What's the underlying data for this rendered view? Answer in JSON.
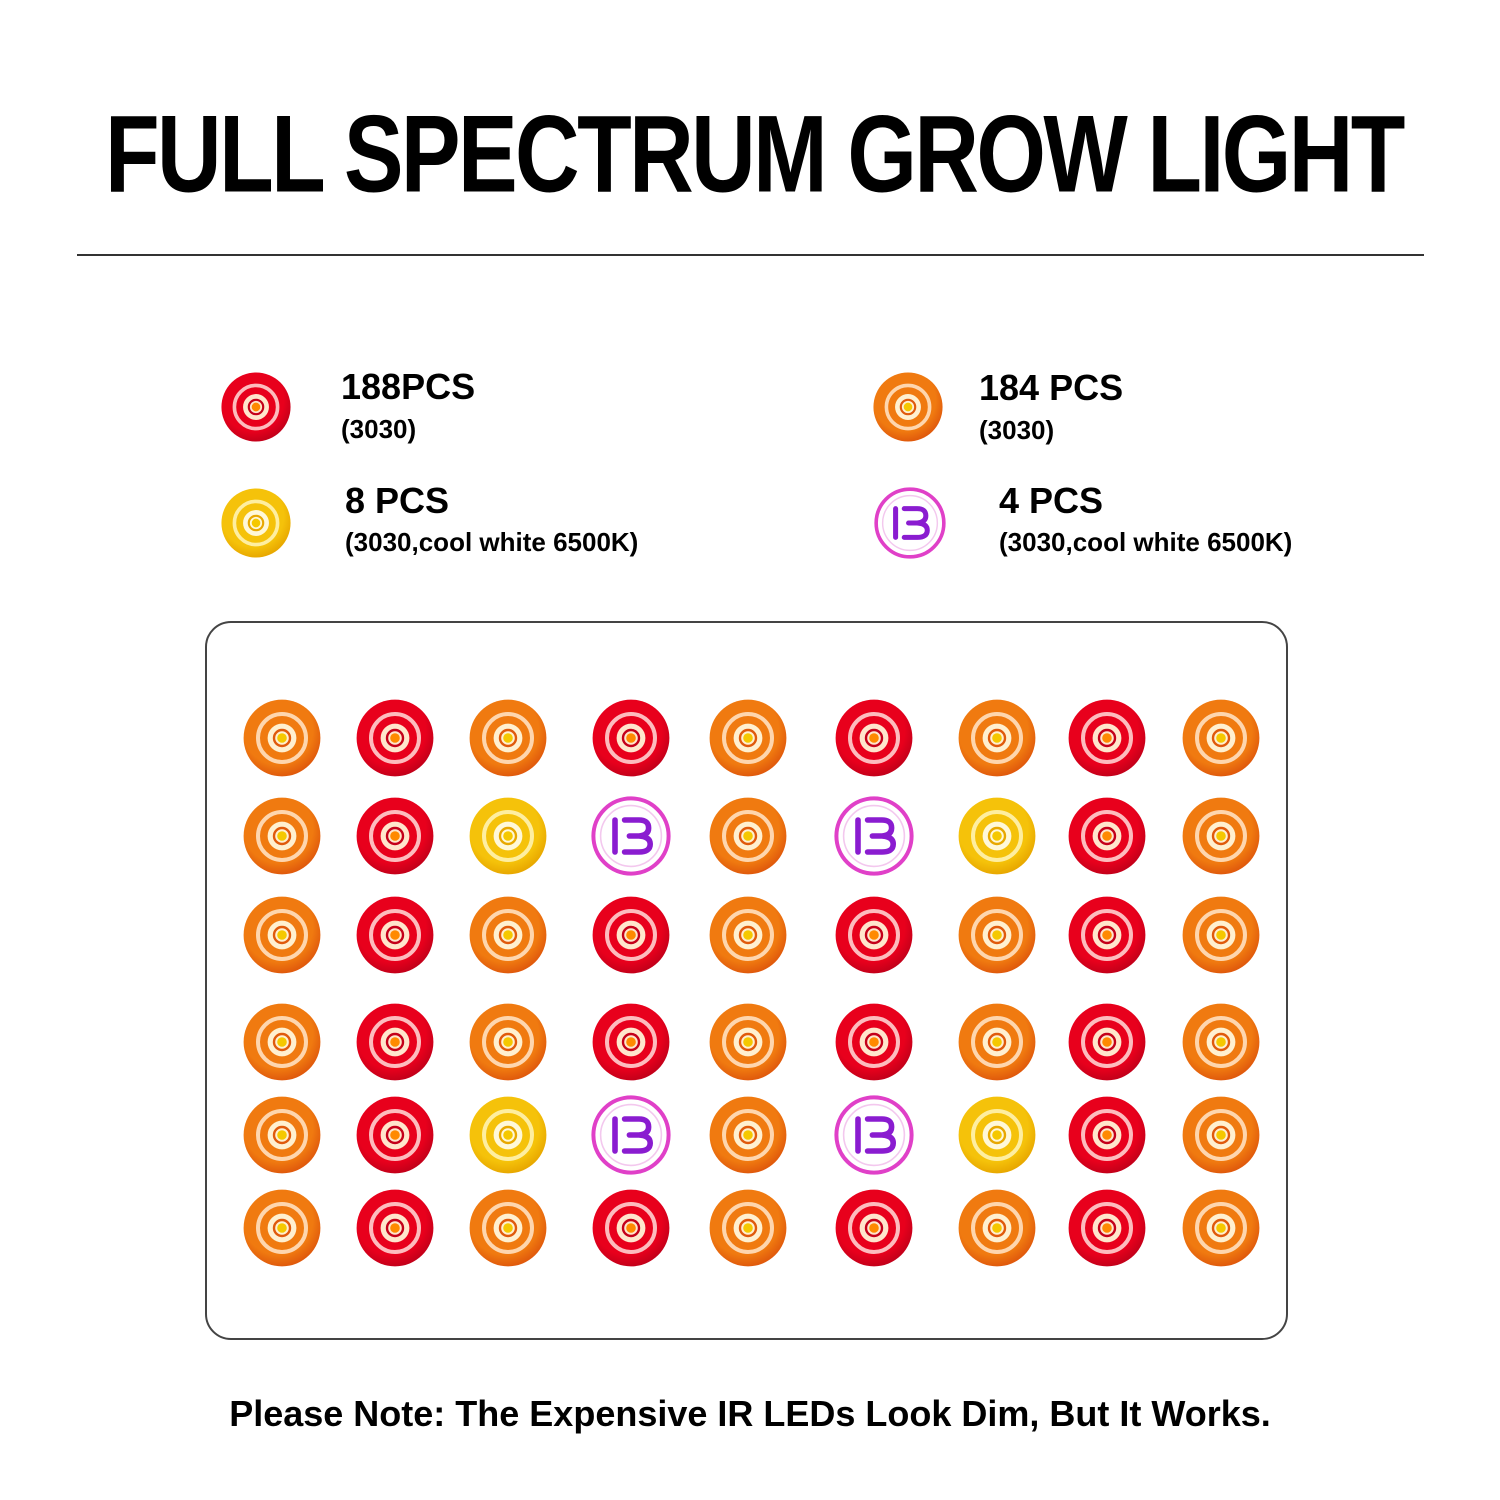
{
  "title": "FULL SPECTRUM GROW LIGHT",
  "legend": [
    {
      "count": "188PCS",
      "spec": "(3030)",
      "type": "red"
    },
    {
      "count": "184 PCS",
      "spec": "(3030)",
      "type": "orange"
    },
    {
      "count": "8 PCS",
      "spec": "(3030,cool white 6500K)",
      "type": "yellow"
    },
    {
      "count": "4 PCS",
      "spec": "(3030,cool white 6500K)",
      "type": "purple"
    }
  ],
  "led_types": {
    "red": {
      "outer": "#e8001c",
      "mid": "#c4001a",
      "ring": "#ffd0d0",
      "core": "#ffe6cc",
      "center": "#ff8a00"
    },
    "orange": {
      "outer": "#f07a10",
      "mid": "#e05a0c",
      "ring": "#ffe0c0",
      "core": "#fff0d0",
      "center": "#f5c800"
    },
    "yellow": {
      "outer": "#f5c20a",
      "mid": "#e8a800",
      "ring": "#fff3b0",
      "core": "#fff8d8",
      "center": "#f5c800"
    },
    "purple": {
      "outer": "#ffffff",
      "mid": "#ffffff",
      "ring": "#e040c8",
      "core": "#ffffff",
      "center": "#8a1cd0"
    }
  },
  "led_rows": [
    [
      "orange",
      "red",
      "orange",
      "red",
      "orange",
      "red",
      "orange",
      "red",
      "orange"
    ],
    [
      "orange",
      "red",
      "yellow",
      "purple",
      "orange",
      "purple",
      "yellow",
      "red",
      "orange"
    ],
    [
      "orange",
      "red",
      "orange",
      "red",
      "orange",
      "red",
      "orange",
      "red",
      "orange"
    ],
    [
      "orange",
      "red",
      "orange",
      "red",
      "orange",
      "red",
      "orange",
      "red",
      "orange"
    ],
    [
      "orange",
      "red",
      "yellow",
      "purple",
      "orange",
      "purple",
      "yellow",
      "red",
      "orange"
    ],
    [
      "orange",
      "red",
      "orange",
      "red",
      "orange",
      "red",
      "orange",
      "red",
      "orange"
    ]
  ],
  "note": "Please Note: The Expensive IR LEDs Look Dim, But It Works."
}
